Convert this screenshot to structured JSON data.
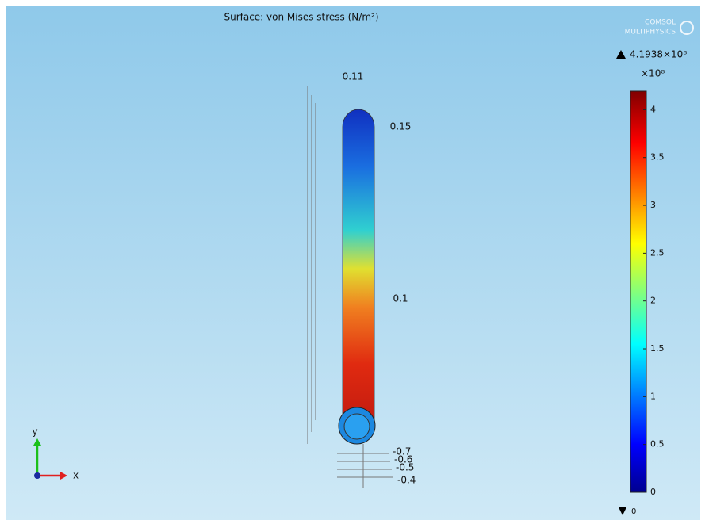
{
  "title": "Surface: von Mises stress (N/m²)",
  "logo": {
    "line1": "COMSOL",
    "line2": "MULTIPHYSICS"
  },
  "colorbar": {
    "max_label": "4.1938×10⁸",
    "multiplier": "×10⁸",
    "min_label": "0",
    "range": [
      0,
      4.1938
    ],
    "ticks": [
      0,
      0.5,
      1,
      1.5,
      2,
      2.5,
      3,
      3.5,
      4
    ]
  },
  "model_axis_labels": {
    "top": "0.11",
    "upper": "0.15",
    "middle": "0.1",
    "bottom": [
      "-0.7",
      "-0.6",
      "-0.5",
      "-0.4"
    ]
  },
  "triad": {
    "y": "y",
    "x": "x"
  }
}
